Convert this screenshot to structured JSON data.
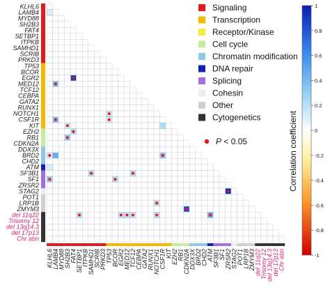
{
  "chart_data": {
    "type": "heatmap",
    "genes": [
      "KLHL6",
      "LAMB4",
      "MYD88",
      "SH2B3",
      "FAT4",
      "SETBP1",
      "ITPKB",
      "SAMHD1",
      "SCRIB",
      "PRKD3",
      "TP53",
      "BCOR",
      "EGR2",
      "MED12",
      "TCF12",
      "CEBPA",
      "GATA2",
      "RUNX1",
      "NOTCH1",
      "CSF1R",
      "KIT",
      "EZH2",
      "RB1",
      "CDKN2A",
      "DDX3X",
      "BRD2",
      "CHD2",
      "ATM",
      "SF3B1",
      "SF1",
      "ZRSR2",
      "STAG2",
      "POT1",
      "LRP1B",
      "ZMYM3",
      "del 11q22",
      "Trisomy 12",
      "del 13q14.3",
      "del 17p13",
      "Chr abn"
    ],
    "highlighted_labels": [
      "del 11q22",
      "Trisomy 12",
      "del 13q14.3",
      "del 17p13",
      "Chr abn"
    ],
    "groups": [
      {
        "name": "Signaling",
        "color": "#e31a1c",
        "count": 10
      },
      {
        "name": "Transcription",
        "color": "#f5b800",
        "count": 11
      },
      {
        "name": "Receptor/Kinase",
        "color": "#f2ef3a",
        "count": 0
      },
      {
        "name": "Cell cycle",
        "color": "#c7ec9e",
        "count": 3
      },
      {
        "name": "Chromatin modification",
        "color": "#8ec9ec",
        "count": 3
      },
      {
        "name": "DNA repair",
        "color": "#1020b8",
        "count": 1
      },
      {
        "name": "Splicing",
        "color": "#a46ee0",
        "count": 3
      },
      {
        "name": "Cohesin",
        "color": "#e9eef3",
        "count": 1
      },
      {
        "name": "Other",
        "color": "#cfcfcf",
        "count": 3
      },
      {
        "name": "Cytogenetics",
        "color": "#333333",
        "count": 5
      }
    ],
    "cells": [
      {
        "row": "LAMB4",
        "col": "KLHL6",
        "value": 0.1,
        "sig": false
      },
      {
        "row": "EGR2",
        "col": "FAT4",
        "value": 0.9,
        "sig": true
      },
      {
        "row": "MED12",
        "col": "LAMB4",
        "value": 0.35,
        "sig": true
      },
      {
        "row": "NOTCH1",
        "col": "TP53",
        "value": 0.12,
        "sig": true
      },
      {
        "row": "CSF1R",
        "col": "LAMB4",
        "value": 0.35,
        "sig": true
      },
      {
        "row": "CSF1R",
        "col": "TP53",
        "value": 0.12,
        "sig": true
      },
      {
        "row": "KIT",
        "col": "SH2B3",
        "value": 0.12,
        "sig": true
      },
      {
        "row": "KIT",
        "col": "CSF1R",
        "value": 0.22,
        "sig": false
      },
      {
        "row": "EZH2",
        "col": "FAT4",
        "value": 0.22,
        "sig": true
      },
      {
        "row": "RB1",
        "col": "SH2B3",
        "value": 0.3,
        "sig": true
      },
      {
        "row": "BRD2",
        "col": "KLHL6",
        "value": 0.12,
        "sig": true
      },
      {
        "row": "BRD2",
        "col": "LAMB4",
        "value": 0.45,
        "sig": false
      },
      {
        "row": "BRD2",
        "col": "CSF1R",
        "value": 0.35,
        "sig": true
      },
      {
        "row": "ATM",
        "col": "KLHL6",
        "value": 0.1,
        "sig": false
      },
      {
        "row": "SF3B1",
        "col": "SAMHD1",
        "value": 0.2,
        "sig": true
      },
      {
        "row": "SF3B1",
        "col": "TCF12",
        "value": 0.2,
        "sig": true
      },
      {
        "row": "SF1",
        "col": "KLHL6",
        "value": 0.3,
        "sig": true
      },
      {
        "row": "SF1",
        "col": "BCOR",
        "value": 0.2,
        "sig": true
      },
      {
        "row": "STAG2",
        "col": "ZRSR2",
        "value": 0.95,
        "sig": true
      },
      {
        "row": "LRP1B",
        "col": "NOTCH1",
        "value": 0.18,
        "sig": true
      },
      {
        "row": "ZMYM3",
        "col": "CDKN2A",
        "value": 0.85,
        "sig": true
      },
      {
        "row": "del 11q22",
        "col": "SETBP1",
        "value": 0.18,
        "sig": true
      },
      {
        "row": "del 11q22",
        "col": "EGR2",
        "value": 0.15,
        "sig": true
      },
      {
        "row": "del 11q22",
        "col": "MED12",
        "value": 0.15,
        "sig": true
      },
      {
        "row": "del 11q22",
        "col": "TCF12",
        "value": 0.15,
        "sig": true
      },
      {
        "row": "del 11q22",
        "col": "NOTCH1",
        "value": 0.18,
        "sig": true
      },
      {
        "row": "del 11q22",
        "col": "ATM",
        "value": 0.45,
        "sig": true
      }
    ],
    "legend": {
      "placement": "top-right",
      "items": [
        "Signaling",
        "Transcription",
        "Receptor/Kinase",
        "Cell cycle",
        "Chromatin modification",
        "DNA repair",
        "Splicing",
        "Cohesin",
        "Other",
        "Cytogenetics"
      ],
      "significance_label_italic": "P",
      "significance_label_rest": " < 0.05",
      "significance_color": "#e31a1c"
    },
    "colorbar": {
      "label": "Correlation coefficient",
      "ticks": [
        "1",
        "0.8",
        "0.6",
        "0.4",
        "0.2",
        "0",
        "-0.2",
        "-0.4",
        "-0.6",
        "-0.8",
        "-1"
      ],
      "range": [
        -1,
        1
      ]
    }
  }
}
